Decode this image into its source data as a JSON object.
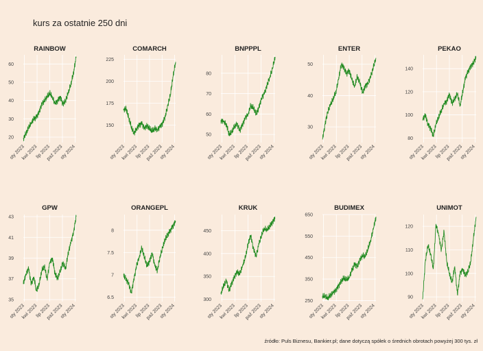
{
  "title": "kurs za ostatnie 250 dni",
  "source": "źródło: Puls Biznesu, Bankier.pl; dane dotyczą spółek o średnich obrotach powyżej 300 tys. zł",
  "colors": {
    "background": "#faebdd",
    "line": "#228b22",
    "grid": "#ffffff"
  },
  "chart_data": [
    {
      "type": "line",
      "title": "RAINBOW",
      "x_ticks": [
        "sty 2023",
        "kwi 2023",
        "lip 2023",
        "paź 2023",
        "sty 2024"
      ],
      "y_ticks": [
        20,
        30,
        40,
        50,
        60
      ],
      "ylim": [
        17,
        65
      ],
      "points": [
        [
          0,
          19
        ],
        [
          0.05,
          22
        ],
        [
          0.1,
          25
        ],
        [
          0.15,
          28
        ],
        [
          0.2,
          30
        ],
        [
          0.25,
          31
        ],
        [
          0.3,
          34
        ],
        [
          0.35,
          38
        ],
        [
          0.4,
          40
        ],
        [
          0.45,
          42
        ],
        [
          0.5,
          44
        ],
        [
          0.55,
          42
        ],
        [
          0.6,
          38
        ],
        [
          0.65,
          40
        ],
        [
          0.7,
          42
        ],
        [
          0.75,
          38
        ],
        [
          0.8,
          40
        ],
        [
          0.85,
          44
        ],
        [
          0.9,
          49
        ],
        [
          0.95,
          55
        ],
        [
          1,
          64
        ]
      ]
    },
    {
      "type": "line",
      "title": "COMARCH",
      "x_ticks": [
        "sty 2023",
        "kwi 2023",
        "lip 2023",
        "paź 2023",
        "sty 2024"
      ],
      "y_ticks": [
        150,
        175,
        200,
        225
      ],
      "ylim": [
        130,
        230
      ],
      "points": [
        [
          0,
          167
        ],
        [
          0.05,
          169
        ],
        [
          0.1,
          158
        ],
        [
          0.15,
          148
        ],
        [
          0.2,
          140
        ],
        [
          0.25,
          146
        ],
        [
          0.3,
          150
        ],
        [
          0.35,
          152
        ],
        [
          0.4,
          147
        ],
        [
          0.45,
          149
        ],
        [
          0.5,
          146
        ],
        [
          0.55,
          143
        ],
        [
          0.6,
          146
        ],
        [
          0.65,
          145
        ],
        [
          0.7,
          148
        ],
        [
          0.75,
          152
        ],
        [
          0.8,
          160
        ],
        [
          0.85,
          172
        ],
        [
          0.9,
          185
        ],
        [
          0.95,
          205
        ],
        [
          1,
          222
        ]
      ]
    },
    {
      "type": "line",
      "title": "BNPPPL",
      "x_ticks": [
        "sty 2023",
        "kwi 2023",
        "lip 2023",
        "paź 2023",
        "sty 2024"
      ],
      "y_ticks": [
        50,
        60,
        70,
        80
      ],
      "ylim": [
        46,
        89
      ],
      "points": [
        [
          0,
          57
        ],
        [
          0.05,
          56
        ],
        [
          0.1,
          55
        ],
        [
          0.15,
          50
        ],
        [
          0.2,
          51
        ],
        [
          0.25,
          54
        ],
        [
          0.3,
          55
        ],
        [
          0.35,
          52
        ],
        [
          0.4,
          55
        ],
        [
          0.45,
          58
        ],
        [
          0.5,
          60
        ],
        [
          0.55,
          64
        ],
        [
          0.6,
          63
        ],
        [
          0.65,
          60
        ],
        [
          0.7,
          63
        ],
        [
          0.75,
          68
        ],
        [
          0.8,
          70
        ],
        [
          0.85,
          74
        ],
        [
          0.9,
          78
        ],
        [
          0.95,
          82
        ],
        [
          1,
          88
        ]
      ]
    },
    {
      "type": "line",
      "title": "ENTER",
      "x_ticks": [
        "sty 2023",
        "kwi 2023",
        "lip 2023",
        "paź 2023",
        "sty 2024"
      ],
      "y_ticks": [
        30,
        40,
        50
      ],
      "ylim": [
        25,
        53
      ],
      "points": [
        [
          0,
          26
        ],
        [
          0.05,
          31
        ],
        [
          0.1,
          35
        ],
        [
          0.15,
          37
        ],
        [
          0.2,
          39
        ],
        [
          0.25,
          41
        ],
        [
          0.3,
          45
        ],
        [
          0.35,
          50
        ],
        [
          0.4,
          49
        ],
        [
          0.45,
          47
        ],
        [
          0.5,
          48
        ],
        [
          0.55,
          45
        ],
        [
          0.6,
          43
        ],
        [
          0.65,
          46
        ],
        [
          0.7,
          44
        ],
        [
          0.75,
          41
        ],
        [
          0.8,
          43
        ],
        [
          0.85,
          44
        ],
        [
          0.9,
          46
        ],
        [
          0.95,
          49
        ],
        [
          1,
          52
        ]
      ]
    },
    {
      "type": "line",
      "title": "PEKAO",
      "x_ticks": [
        "sty 2023",
        "kwi 2023",
        "lip 2023",
        "paź 2023",
        "sty 2024"
      ],
      "y_ticks": [
        80,
        100,
        120,
        140
      ],
      "ylim": [
        76,
        152
      ],
      "points": [
        [
          0,
          96
        ],
        [
          0.05,
          100
        ],
        [
          0.1,
          92
        ],
        [
          0.15,
          88
        ],
        [
          0.2,
          82
        ],
        [
          0.25,
          92
        ],
        [
          0.3,
          98
        ],
        [
          0.35,
          104
        ],
        [
          0.4,
          109
        ],
        [
          0.45,
          112
        ],
        [
          0.5,
          118
        ],
        [
          0.55,
          110
        ],
        [
          0.6,
          114
        ],
        [
          0.65,
          118
        ],
        [
          0.7,
          108
        ],
        [
          0.75,
          120
        ],
        [
          0.8,
          132
        ],
        [
          0.85,
          138
        ],
        [
          0.9,
          142
        ],
        [
          0.95,
          145
        ],
        [
          1,
          150
        ]
      ]
    },
    {
      "type": "line",
      "title": "GPW",
      "x_ticks": [
        "sty 2023",
        "kwi 2023",
        "lip 2023",
        "paź 2023",
        "sty 2024"
      ],
      "y_ticks": [
        35,
        37,
        39,
        41,
        43
      ],
      "ylim": [
        34.8,
        43.2
      ],
      "points": [
        [
          0,
          36.5
        ],
        [
          0.05,
          37.5
        ],
        [
          0.1,
          38.0
        ],
        [
          0.15,
          36.5
        ],
        [
          0.2,
          37.2
        ],
        [
          0.25,
          35.8
        ],
        [
          0.3,
          36.5
        ],
        [
          0.35,
          37.8
        ],
        [
          0.4,
          38.2
        ],
        [
          0.45,
          37.0
        ],
        [
          0.5,
          38.5
        ],
        [
          0.55,
          39.0
        ],
        [
          0.6,
          37.5
        ],
        [
          0.65,
          37.0
        ],
        [
          0.7,
          37.8
        ],
        [
          0.75,
          38.5
        ],
        [
          0.8,
          38.0
        ],
        [
          0.85,
          39.5
        ],
        [
          0.9,
          40.5
        ],
        [
          0.95,
          41.5
        ],
        [
          1,
          43.0
        ]
      ]
    },
    {
      "type": "line",
      "title": "ORANGEPL",
      "x_ticks": [
        "sty 2023",
        "kwi 2023",
        "lip 2023",
        "paź 2023",
        "sty 2024"
      ],
      "y_ticks": [
        6.5,
        7.0,
        7.5,
        8.0
      ],
      "ylim": [
        6.4,
        8.35
      ],
      "points": [
        [
          0,
          7.0
        ],
        [
          0.05,
          6.9
        ],
        [
          0.1,
          6.8
        ],
        [
          0.15,
          6.6
        ],
        [
          0.2,
          6.9
        ],
        [
          0.25,
          7.2
        ],
        [
          0.3,
          7.4
        ],
        [
          0.35,
          7.6
        ],
        [
          0.4,
          7.4
        ],
        [
          0.45,
          7.2
        ],
        [
          0.5,
          7.3
        ],
        [
          0.55,
          7.5
        ],
        [
          0.6,
          7.2
        ],
        [
          0.65,
          7.1
        ],
        [
          0.7,
          7.4
        ],
        [
          0.75,
          7.6
        ],
        [
          0.8,
          7.8
        ],
        [
          0.85,
          7.9
        ],
        [
          0.9,
          8.0
        ],
        [
          0.95,
          8.1
        ],
        [
          1,
          8.2
        ]
      ]
    },
    {
      "type": "line",
      "title": "KRUK",
      "x_ticks": [
        "sty 2023",
        "kwi 2023",
        "lip 2023",
        "paź 2023",
        "sty 2024"
      ],
      "y_ticks": [
        300,
        350,
        400,
        450
      ],
      "ylim": [
        295,
        485
      ],
      "points": [
        [
          0,
          312
        ],
        [
          0.05,
          330
        ],
        [
          0.1,
          340
        ],
        [
          0.15,
          320
        ],
        [
          0.2,
          335
        ],
        [
          0.25,
          350
        ],
        [
          0.3,
          360
        ],
        [
          0.35,
          355
        ],
        [
          0.4,
          375
        ],
        [
          0.45,
          390
        ],
        [
          0.5,
          420
        ],
        [
          0.55,
          440
        ],
        [
          0.6,
          410
        ],
        [
          0.65,
          395
        ],
        [
          0.7,
          420
        ],
        [
          0.75,
          440
        ],
        [
          0.8,
          455
        ],
        [
          0.85,
          450
        ],
        [
          0.9,
          460
        ],
        [
          0.95,
          468
        ],
        [
          1,
          478
        ]
      ]
    },
    {
      "type": "line",
      "title": "BUDIMEX",
      "x_ticks": [
        "sty 2023",
        "kwi 2023",
        "lip 2023",
        "paź 2023",
        "sty 2024"
      ],
      "y_ticks": [
        250,
        350,
        450,
        550,
        650
      ],
      "ylim": [
        245,
        650
      ],
      "points": [
        [
          0,
          272
        ],
        [
          0.05,
          268
        ],
        [
          0.1,
          262
        ],
        [
          0.15,
          275
        ],
        [
          0.2,
          285
        ],
        [
          0.25,
          300
        ],
        [
          0.3,
          318
        ],
        [
          0.35,
          340
        ],
        [
          0.4,
          355
        ],
        [
          0.45,
          345
        ],
        [
          0.5,
          360
        ],
        [
          0.55,
          390
        ],
        [
          0.6,
          420
        ],
        [
          0.65,
          410
        ],
        [
          0.7,
          440
        ],
        [
          0.75,
          460
        ],
        [
          0.8,
          455
        ],
        [
          0.85,
          490
        ],
        [
          0.9,
          530
        ],
        [
          0.95,
          580
        ],
        [
          1,
          640
        ]
      ]
    },
    {
      "type": "line",
      "title": "UNIMOT",
      "x_ticks": [
        "sty 2023",
        "kwi 2023",
        "lip 2023",
        "paź 2023",
        "sty 2024"
      ],
      "y_ticks": [
        90,
        100,
        110,
        120
      ],
      "ylim": [
        88,
        125
      ],
      "points": [
        [
          0,
          89
        ],
        [
          0.05,
          105
        ],
        [
          0.1,
          112
        ],
        [
          0.15,
          108
        ],
        [
          0.2,
          102
        ],
        [
          0.25,
          121
        ],
        [
          0.3,
          116
        ],
        [
          0.35,
          110
        ],
        [
          0.4,
          118
        ],
        [
          0.45,
          105
        ],
        [
          0.5,
          100
        ],
        [
          0.55,
          96
        ],
        [
          0.6,
          103
        ],
        [
          0.65,
          91
        ],
        [
          0.7,
          100
        ],
        [
          0.75,
          102
        ],
        [
          0.8,
          99
        ],
        [
          0.85,
          101
        ],
        [
          0.9,
          105
        ],
        [
          0.95,
          115
        ],
        [
          1,
          124
        ]
      ]
    }
  ]
}
